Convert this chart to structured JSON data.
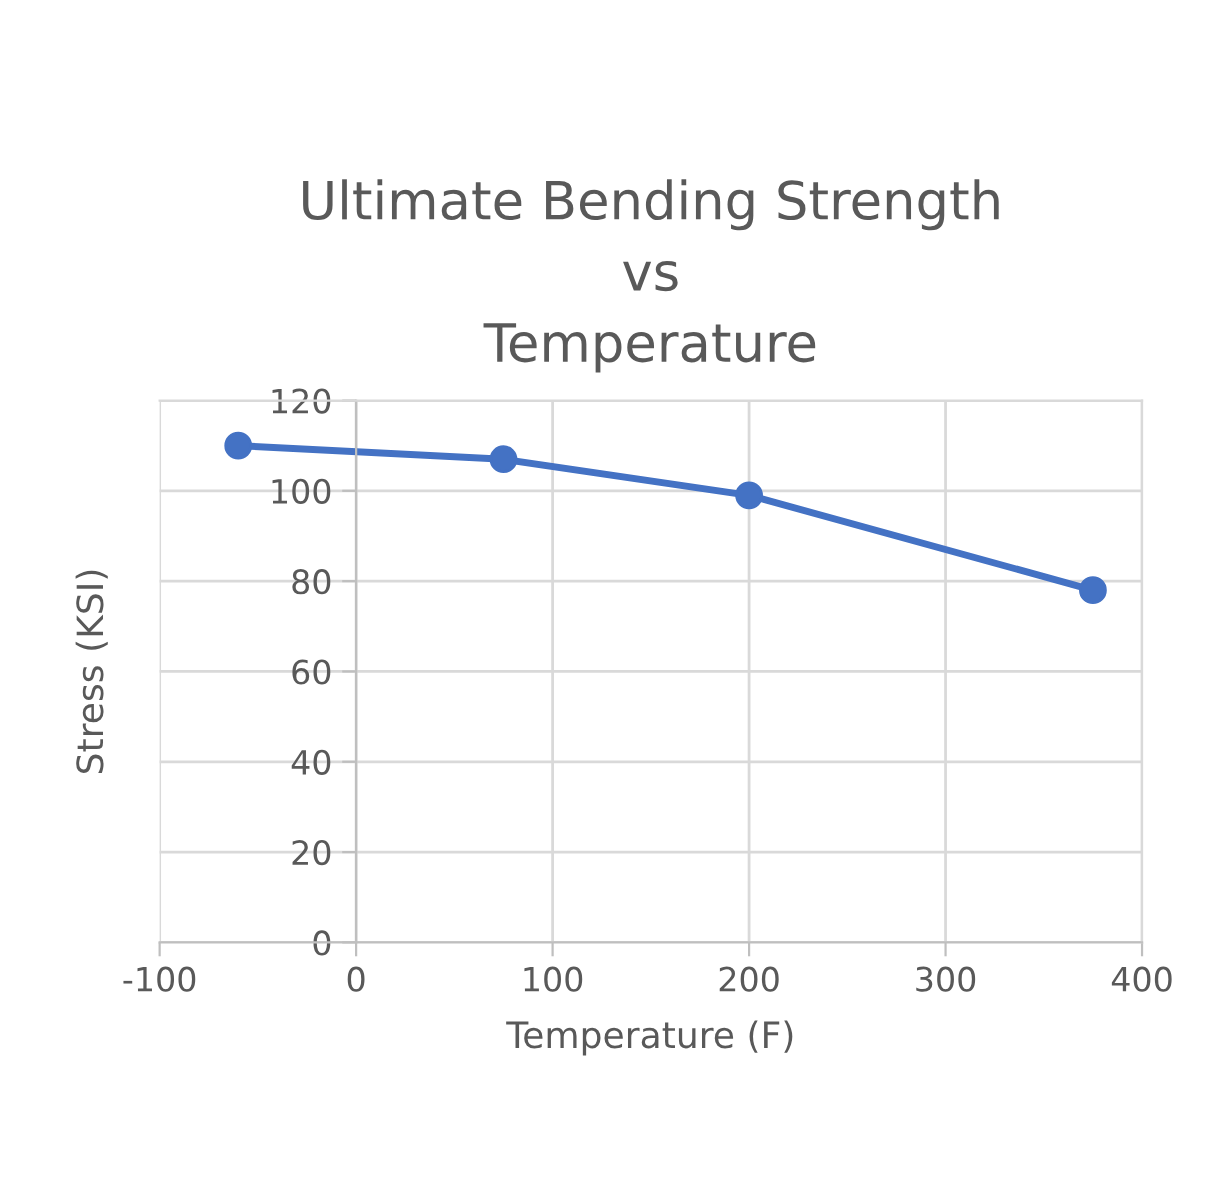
{
  "chart_data": {
    "type": "line",
    "title": "Ultimate Bending Strength\nvs\nTemperature",
    "xlabel": "Temperature (F)",
    "ylabel": "Stress (KSI)",
    "x": [
      -60,
      75,
      200,
      375
    ],
    "series": [
      {
        "color": "#4472c4",
        "values": [
          110,
          107,
          99,
          78
        ]
      }
    ],
    "xlim": [
      -100,
      400
    ],
    "xticks": [
      -100,
      0,
      100,
      200,
      300,
      400
    ],
    "ylim": [
      0,
      120
    ],
    "yticks": [
      0,
      20,
      40,
      60,
      80,
      100,
      120
    ],
    "grid": true,
    "marker": "circle",
    "line_style": "solid"
  }
}
